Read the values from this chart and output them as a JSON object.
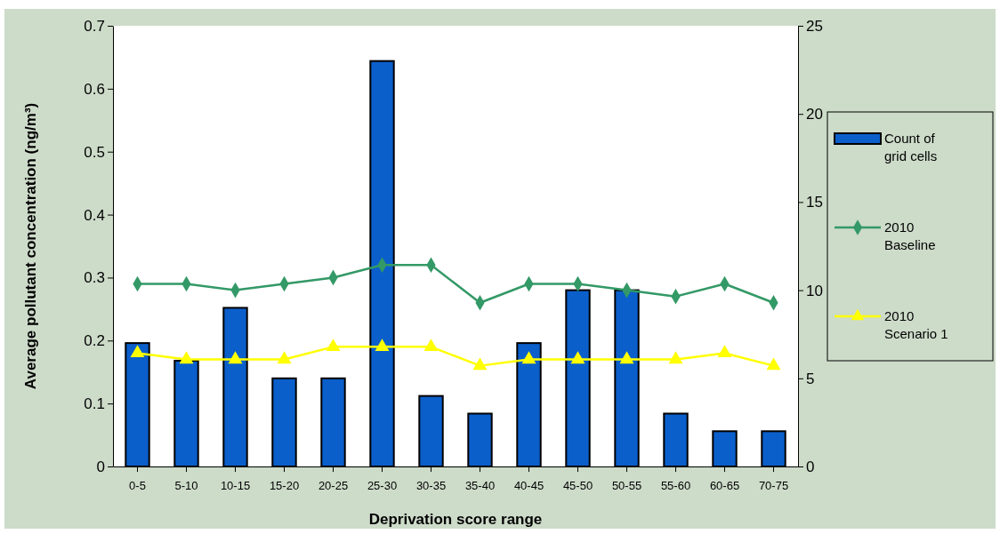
{
  "chart_data": {
    "type": "bar",
    "xlabel": "Deprivation score range",
    "ylabel": "Average pollutant concentration (ng/m³)",
    "categories": [
      "0-5",
      "5-10",
      "10-15",
      "15-20",
      "20-25",
      "25-30",
      "30-35",
      "35-40",
      "40-45",
      "45-50",
      "50-55",
      "55-60",
      "60-65",
      "70-75"
    ],
    "series": [
      {
        "name": "Count of grid cells",
        "axis": "y2",
        "color": "#0b5fcb",
        "values": [
          7,
          6,
          9,
          5,
          5,
          23,
          4,
          3,
          7,
          10,
          10,
          3,
          2,
          2
        ]
      },
      {
        "name": "2010 Baseline",
        "type": "line",
        "marker": "diamond",
        "color": "#339966",
        "values": [
          0.29,
          0.29,
          0.28,
          0.29,
          0.3,
          0.32,
          0.32,
          0.26,
          0.29,
          0.29,
          0.28,
          0.27,
          0.29,
          0.26
        ]
      },
      {
        "name": "2010 Scenario 1",
        "type": "line",
        "marker": "triangle",
        "color": "#ffff00",
        "values": [
          0.18,
          0.17,
          0.17,
          0.17,
          0.19,
          0.19,
          0.19,
          0.16,
          0.17,
          0.17,
          0.17,
          0.17,
          0.18,
          0.16
        ]
      }
    ],
    "ylim": [
      0,
      0.7
    ],
    "yticks": [
      0,
      0.1,
      0.2,
      0.3,
      0.4,
      0.5,
      0.6,
      0.7
    ],
    "y2lim": [
      0,
      25
    ],
    "y2ticks": [
      0,
      5,
      10,
      15,
      20,
      25
    ],
    "grid": false,
    "legend": "right"
  }
}
